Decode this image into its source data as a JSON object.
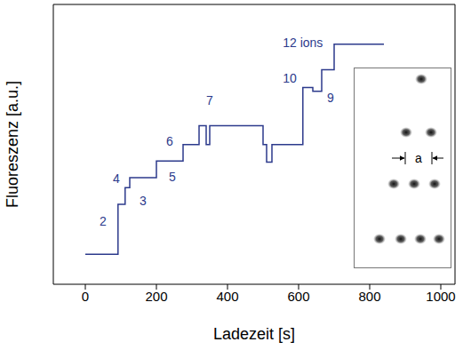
{
  "chart_data": {
    "type": "line",
    "line_style": "step",
    "color": "#2c3a8c",
    "x_label": "Ladezeit [s]",
    "y_label": "Fluoreszenz [a.u.]",
    "x": [
      0,
      92,
      112,
      125,
      200,
      275,
      320,
      340,
      350,
      500,
      510,
      525,
      612,
      640,
      665,
      700,
      840
    ],
    "values": [
      0.55,
      1.47,
      1.78,
      1.96,
      2.27,
      2.57,
      2.92,
      2.57,
      2.92,
      2.57,
      2.25,
      2.57,
      3.62,
      3.55,
      3.95,
      4.42,
      4.42
    ],
    "xlim": [
      -90,
      1040
    ],
    "xticks": [
      0,
      200,
      400,
      600,
      800,
      1000
    ],
    "ylim": [
      0,
      5.15
    ],
    "yticks": [
      1,
      2,
      3,
      4,
      5
    ],
    "tick_labels": "x",
    "grid": false,
    "annotations": [
      {
        "text": "2",
        "x": 50,
        "y": 1.16
      },
      {
        "text": "3",
        "x": 162,
        "y": 1.53
      },
      {
        "text": "4",
        "x": 87,
        "y": 1.95
      },
      {
        "text": "5",
        "x": 245,
        "y": 1.98
      },
      {
        "text": "6",
        "x": 237,
        "y": 2.63
      },
      {
        "text": "7",
        "x": 350,
        "y": 3.39
      },
      {
        "text": "10",
        "x": 575,
        "y": 3.8
      },
      {
        "text": "9",
        "x": 690,
        "y": 3.43
      },
      {
        "text": "12 ions",
        "x": 612,
        "y": 4.45
      }
    ],
    "inset": {
      "annotation": "a"
    }
  }
}
